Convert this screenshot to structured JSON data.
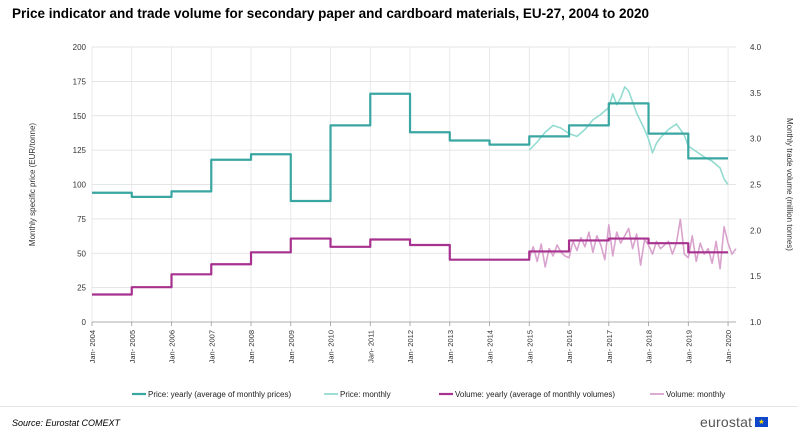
{
  "title": "Price indicator and trade volume for secondary paper and cardboard materials, EU-27, 2004 to  2020",
  "source": "Source: Eurostat COMEXT",
  "logo_text": "eurostat",
  "chart_data": {
    "type": "line",
    "ylabel_left": "Monthly specific price (EUR/tonne)",
    "ylabel_right": "Monthly trade volume (million tonnes)",
    "ylim_left": [
      0,
      200
    ],
    "ylim_right": [
      1.0,
      4.0
    ],
    "yticks_left": [
      "0",
      "25",
      "50",
      "75",
      "100",
      "125",
      "150",
      "175",
      "200"
    ],
    "yticks_right": [
      "1.0",
      "1.5",
      "2.0",
      "2.5",
      "3.0",
      "3.5",
      "4.0"
    ],
    "xlim": [
      2004,
      2020.2
    ],
    "xticks": [
      "Jan- 2004",
      "Jan- 2005",
      "Jan- 2006",
      "Jan- 2007",
      "Jan- 2008",
      "Jan- 2009",
      "Jan- 2010",
      "Jan- 2011",
      "Jan- 2012",
      "Jan- 2013",
      "Jan- 2014",
      "Jan- 2015",
      "Jan- 2016",
      "Jan- 2017",
      "Jan- 2018",
      "Jan- 2019",
      "Jan- 2020"
    ],
    "grid": true,
    "legend_position": "bottom",
    "series": [
      {
        "name": "Price: yearly (average of monthly prices)",
        "color": "#3aa6a2",
        "axis": "left",
        "step": true,
        "years": [
          2004,
          2005,
          2006,
          2007,
          2008,
          2009,
          2010,
          2011,
          2012,
          2013,
          2014,
          2015,
          2016,
          2017,
          2018,
          2019
        ],
        "values": [
          94,
          91,
          95,
          118,
          122,
          88,
          143,
          166,
          138,
          132,
          129,
          135,
          143,
          159,
          137,
          119
        ]
      },
      {
        "name": "Price: monthly",
        "color": "#93dbd1",
        "axis": "left",
        "step": false,
        "x": [
          2015.0,
          2015.2,
          2015.4,
          2015.6,
          2015.8,
          2016.0,
          2016.2,
          2016.4,
          2016.6,
          2016.8,
          2017.0,
          2017.1,
          2017.2,
          2017.3,
          2017.4,
          2017.5,
          2017.6,
          2017.7,
          2017.8,
          2017.9,
          2018.0,
          2018.1,
          2018.2,
          2018.3,
          2018.5,
          2018.7,
          2018.9,
          2019.0,
          2019.2,
          2019.4,
          2019.6,
          2019.8,
          2019.9,
          2020.0
        ],
        "values": [
          125,
          131,
          138,
          143,
          141,
          137,
          135,
          140,
          147,
          151,
          156,
          166,
          158,
          163,
          171,
          168,
          160,
          152,
          146,
          140,
          133,
          123,
          130,
          134,
          140,
          144,
          136,
          128,
          124,
          120,
          117,
          112,
          104,
          100
        ]
      },
      {
        "name": "Volume: yearly (average of monthly volumes)",
        "color": "#a7318e",
        "axis": "right",
        "step": true,
        "years": [
          2004,
          2005,
          2006,
          2007,
          2008,
          2009,
          2010,
          2011,
          2012,
          2013,
          2014,
          2015,
          2016,
          2017,
          2018,
          2019
        ],
        "values": [
          1.3,
          1.38,
          1.52,
          1.63,
          1.76,
          1.91,
          1.82,
          1.9,
          1.84,
          1.68,
          1.68,
          1.77,
          1.89,
          1.91,
          1.86,
          1.76
        ]
      },
      {
        "name": "Volume: monthly",
        "color": "#d9a3cd",
        "axis": "right",
        "step": false,
        "x": [
          2015.0,
          2015.1,
          2015.2,
          2015.3,
          2015.4,
          2015.5,
          2015.6,
          2015.7,
          2015.8,
          2015.9,
          2016.0,
          2016.1,
          2016.2,
          2016.3,
          2016.4,
          2016.5,
          2016.6,
          2016.7,
          2016.8,
          2016.9,
          2017.0,
          2017.1,
          2017.2,
          2017.3,
          2017.4,
          2017.5,
          2017.6,
          2017.7,
          2017.8,
          2017.9,
          2018.0,
          2018.1,
          2018.2,
          2018.3,
          2018.4,
          2018.5,
          2018.6,
          2018.7,
          2018.8,
          2018.9,
          2019.0,
          2019.1,
          2019.2,
          2019.3,
          2019.4,
          2019.5,
          2019.6,
          2019.7,
          2019.8,
          2019.9,
          2020.0,
          2020.1,
          2020.2
        ],
        "values": [
          1.7,
          1.82,
          1.66,
          1.85,
          1.6,
          1.8,
          1.72,
          1.84,
          1.76,
          1.72,
          1.7,
          1.88,
          1.78,
          1.92,
          1.82,
          1.98,
          1.76,
          1.94,
          1.84,
          1.68,
          2.06,
          1.72,
          1.98,
          1.86,
          1.94,
          2.02,
          1.8,
          1.96,
          1.62,
          1.9,
          1.84,
          1.74,
          1.88,
          1.8,
          1.84,
          1.88,
          1.74,
          1.86,
          2.12,
          1.74,
          1.7,
          1.94,
          1.66,
          1.86,
          1.74,
          1.8,
          1.64,
          1.88,
          1.58,
          2.04,
          1.86,
          1.74,
          1.8
        ]
      }
    ]
  }
}
